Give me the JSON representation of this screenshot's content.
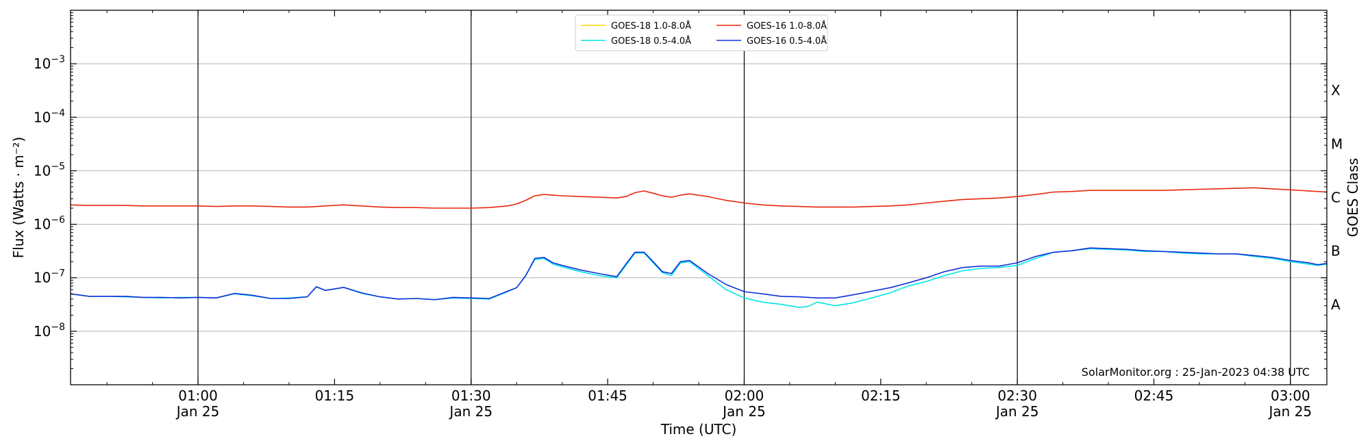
{
  "chart_data": {
    "type": "line",
    "xlabel": "Time (UTC)",
    "ylabel": "Flux (Watts · m⁻²)",
    "y2label": "GOES Class",
    "annotation": "SolarMonitor.org : 25-Jan-2023 04:38 UTC",
    "y_scale": "log",
    "ylim": [
      1e-09,
      0.01
    ],
    "xlim": [
      "00:46",
      "03:04"
    ],
    "grid": "horizontal at decades; vertical lines at 30-minute marks",
    "legend_position": "top-center",
    "x_ticks": [
      {
        "time": "01:00",
        "label": "01:00",
        "sublabel": "Jan 25"
      },
      {
        "time": "01:15",
        "label": "01:15",
        "sublabel": ""
      },
      {
        "time": "01:30",
        "label": "01:30",
        "sublabel": "Jan 25"
      },
      {
        "time": "01:45",
        "label": "01:45",
        "sublabel": ""
      },
      {
        "time": "02:00",
        "label": "02:00",
        "sublabel": "Jan 25"
      },
      {
        "time": "02:15",
        "label": "02:15",
        "sublabel": ""
      },
      {
        "time": "02:30",
        "label": "02:30",
        "sublabel": "Jan 25"
      },
      {
        "time": "02:45",
        "label": "02:45",
        "sublabel": ""
      },
      {
        "time": "03:00",
        "label": "03:00",
        "sublabel": "Jan 25"
      }
    ],
    "y_ticks": [
      {
        "value": 1e-08,
        "base": "10",
        "exp": "−8"
      },
      {
        "value": 1e-07,
        "base": "10",
        "exp": "−7"
      },
      {
        "value": 1e-06,
        "base": "10",
        "exp": "−6"
      },
      {
        "value": 1e-05,
        "base": "10",
        "exp": "−5"
      },
      {
        "value": 0.0001,
        "base": "10",
        "exp": "−4"
      },
      {
        "value": 0.001,
        "base": "10",
        "exp": "−3"
      }
    ],
    "goes_classes": [
      {
        "label": "A",
        "value": 3.16e-08
      },
      {
        "label": "B",
        "value": 3.16e-07
      },
      {
        "label": "C",
        "value": 3.16e-06
      },
      {
        "label": "M",
        "value": 3.16e-05
      },
      {
        "label": "X",
        "value": 0.000316
      }
    ],
    "series": [
      {
        "name": "GOES-18 1.0-8.0Å",
        "color": "#ffd700",
        "x": [],
        "y": []
      },
      {
        "name": "GOES-18 0.5-4.0Å",
        "color": "#00e5e5",
        "x": [
          "00:46",
          "00:48",
          "00:50",
          "00:52",
          "00:54",
          "00:56",
          "00:58",
          "01:00",
          "01:02",
          "01:04",
          "01:06",
          "01:08",
          "01:10",
          "01:12",
          "01:13",
          "01:14",
          "01:16",
          "01:18",
          "01:20",
          "01:22",
          "01:24",
          "01:26",
          "01:28",
          "01:30",
          "01:32",
          "01:34",
          "01:35",
          "01:36",
          "01:37",
          "01:38",
          "01:39",
          "01:40",
          "01:42",
          "01:44",
          "01:46",
          "01:47",
          "01:48",
          "01:49",
          "01:50",
          "01:51",
          "01:52",
          "01:53",
          "01:54",
          "01:56",
          "01:58",
          "02:00",
          "02:02",
          "02:04",
          "02:06",
          "02:07",
          "02:08",
          "02:10",
          "02:12",
          "02:14",
          "02:16",
          "02:18",
          "02:20",
          "02:22",
          "02:24",
          "02:26",
          "02:28",
          "02:30",
          "02:32",
          "02:34",
          "02:36",
          "02:38",
          "02:40",
          "02:42",
          "02:44",
          "02:46",
          "02:48",
          "02:50",
          "02:52",
          "02:54",
          "02:56",
          "02:58",
          "03:00",
          "03:02",
          "03:03",
          "03:04"
        ],
        "y": [
          5e-08,
          4.5e-08,
          4.5e-08,
          4.4e-08,
          4.3e-08,
          4.2e-08,
          4.3e-08,
          4.3e-08,
          4.2e-08,
          5e-08,
          4.6e-08,
          4.1e-08,
          4.2e-08,
          4.4e-08,
          6.7e-08,
          5.8e-08,
          6.6e-08,
          5.1e-08,
          4.4e-08,
          4e-08,
          4.1e-08,
          3.9e-08,
          4.2e-08,
          4.1e-08,
          4e-08,
          5.5e-08,
          6.5e-08,
          1.1e-07,
          2.2e-07,
          2.3e-07,
          1.8e-07,
          1.6e-07,
          1.3e-07,
          1.1e-07,
          1e-07,
          1.7e-07,
          2.9e-07,
          2.9e-07,
          1.9e-07,
          1.25e-07,
          1.1e-07,
          1.9e-07,
          2e-07,
          1.1e-07,
          6e-08,
          4.2e-08,
          3.5e-08,
          3.2e-08,
          2.8e-08,
          2.9e-08,
          3.5e-08,
          3e-08,
          3.4e-08,
          4.2e-08,
          5.2e-08,
          7e-08,
          8.5e-08,
          1.1e-07,
          1.35e-07,
          1.5e-07,
          1.55e-07,
          1.7e-07,
          2.3e-07,
          3e-07,
          3.2e-07,
          3.5e-07,
          3.4e-07,
          3.3e-07,
          3.1e-07,
          3.1e-07,
          2.9e-07,
          2.8e-07,
          2.8e-07,
          2.8e-07,
          2.5e-07,
          2.3e-07,
          2e-07,
          1.8e-07,
          1.7e-07,
          1.8e-07
        ]
      },
      {
        "name": "GOES-16 1.0-8.0Å",
        "color": "#e8270a",
        "x": [
          "00:46",
          "00:48",
          "00:50",
          "00:52",
          "00:54",
          "00:56",
          "00:58",
          "01:00",
          "01:02",
          "01:04",
          "01:06",
          "01:08",
          "01:10",
          "01:12",
          "01:14",
          "01:16",
          "01:18",
          "01:20",
          "01:22",
          "01:24",
          "01:26",
          "01:28",
          "01:30",
          "01:32",
          "01:34",
          "01:35",
          "01:36",
          "01:37",
          "01:38",
          "01:39",
          "01:40",
          "01:42",
          "01:44",
          "01:46",
          "01:47",
          "01:48",
          "01:49",
          "01:50",
          "01:51",
          "01:52",
          "01:53",
          "01:54",
          "01:56",
          "01:58",
          "02:00",
          "02:02",
          "02:04",
          "02:06",
          "02:08",
          "02:10",
          "02:12",
          "02:14",
          "02:16",
          "02:18",
          "02:20",
          "02:22",
          "02:24",
          "02:26",
          "02:28",
          "02:30",
          "02:32",
          "02:34",
          "02:36",
          "02:38",
          "02:40",
          "02:42",
          "02:44",
          "02:46",
          "02:48",
          "02:50",
          "02:52",
          "02:54",
          "02:56",
          "02:58",
          "03:00",
          "03:02",
          "03:04"
        ],
        "y": [
          2.3e-06,
          2.25e-06,
          2.25e-06,
          2.25e-06,
          2.2e-06,
          2.2e-06,
          2.2e-06,
          2.2e-06,
          2.15e-06,
          2.2e-06,
          2.2e-06,
          2.15e-06,
          2.1e-06,
          2.1e-06,
          2.2e-06,
          2.3e-06,
          2.2e-06,
          2.1e-06,
          2.05e-06,
          2.05e-06,
          2e-06,
          2e-06,
          2e-06,
          2.05e-06,
          2.2e-06,
          2.4e-06,
          2.8e-06,
          3.4e-06,
          3.6e-06,
          3.5e-06,
          3.4e-06,
          3.3e-06,
          3.2e-06,
          3.1e-06,
          3.3e-06,
          3.9e-06,
          4.2e-06,
          3.8e-06,
          3.4e-06,
          3.2e-06,
          3.5e-06,
          3.7e-06,
          3.3e-06,
          2.8e-06,
          2.5e-06,
          2.3e-06,
          2.2e-06,
          2.15e-06,
          2.1e-06,
          2.1e-06,
          2.1e-06,
          2.15e-06,
          2.2e-06,
          2.3e-06,
          2.5e-06,
          2.7e-06,
          2.9e-06,
          3e-06,
          3.1e-06,
          3.3e-06,
          3.6e-06,
          4e-06,
          4.1e-06,
          4.3e-06,
          4.3e-06,
          4.3e-06,
          4.3e-06,
          4.3e-06,
          4.4e-06,
          4.5e-06,
          4.6e-06,
          4.7e-06,
          4.8e-06,
          4.6e-06,
          4.4e-06,
          4.2e-06,
          4e-06
        ]
      },
      {
        "name": "GOES-16 0.5-4.0Å",
        "color": "#1030d8",
        "x": [
          "00:46",
          "00:48",
          "00:50",
          "00:52",
          "00:54",
          "00:56",
          "00:58",
          "01:00",
          "01:02",
          "01:04",
          "01:06",
          "01:08",
          "01:10",
          "01:12",
          "01:13",
          "01:14",
          "01:16",
          "01:18",
          "01:20",
          "01:22",
          "01:24",
          "01:26",
          "01:28",
          "01:30",
          "01:32",
          "01:34",
          "01:35",
          "01:36",
          "01:37",
          "01:38",
          "01:39",
          "01:40",
          "01:42",
          "01:44",
          "01:46",
          "01:47",
          "01:48",
          "01:49",
          "01:50",
          "01:51",
          "01:52",
          "01:53",
          "01:54",
          "01:56",
          "01:58",
          "02:00",
          "02:02",
          "02:04",
          "02:06",
          "02:08",
          "02:10",
          "02:12",
          "02:14",
          "02:16",
          "02:18",
          "02:20",
          "02:22",
          "02:24",
          "02:26",
          "02:28",
          "02:30",
          "02:32",
          "02:34",
          "02:36",
          "02:38",
          "02:40",
          "02:42",
          "02:44",
          "02:46",
          "02:48",
          "02:50",
          "02:52",
          "02:54",
          "02:56",
          "02:58",
          "03:00",
          "03:02",
          "03:03",
          "03:04"
        ],
        "y": [
          5e-08,
          4.5e-08,
          4.5e-08,
          4.5e-08,
          4.3e-08,
          4.3e-08,
          4.2e-08,
          4.3e-08,
          4.2e-08,
          5.1e-08,
          4.7e-08,
          4.1e-08,
          4.1e-08,
          4.4e-08,
          6.8e-08,
          5.8e-08,
          6.6e-08,
          5.2e-08,
          4.4e-08,
          4e-08,
          4.1e-08,
          3.9e-08,
          4.3e-08,
          4.2e-08,
          4.1e-08,
          5.6e-08,
          6.5e-08,
          1.1e-07,
          2.3e-07,
          2.4e-07,
          1.9e-07,
          1.7e-07,
          1.4e-07,
          1.2e-07,
          1.05e-07,
          1.8e-07,
          3e-07,
          3e-07,
          2e-07,
          1.3e-07,
          1.2e-07,
          2e-07,
          2.1e-07,
          1.2e-07,
          7.5e-08,
          5.5e-08,
          5e-08,
          4.5e-08,
          4.4e-08,
          4.2e-08,
          4.2e-08,
          4.8e-08,
          5.6e-08,
          6.5e-08,
          8e-08,
          1e-07,
          1.3e-07,
          1.55e-07,
          1.65e-07,
          1.65e-07,
          1.9e-07,
          2.5e-07,
          3e-07,
          3.2e-07,
          3.6e-07,
          3.5e-07,
          3.4e-07,
          3.2e-07,
          3.1e-07,
          3e-07,
          2.9e-07,
          2.8e-07,
          2.8e-07,
          2.6e-07,
          2.4e-07,
          2.1e-07,
          1.9e-07,
          1.75e-07,
          1.85e-07
        ]
      }
    ]
  }
}
